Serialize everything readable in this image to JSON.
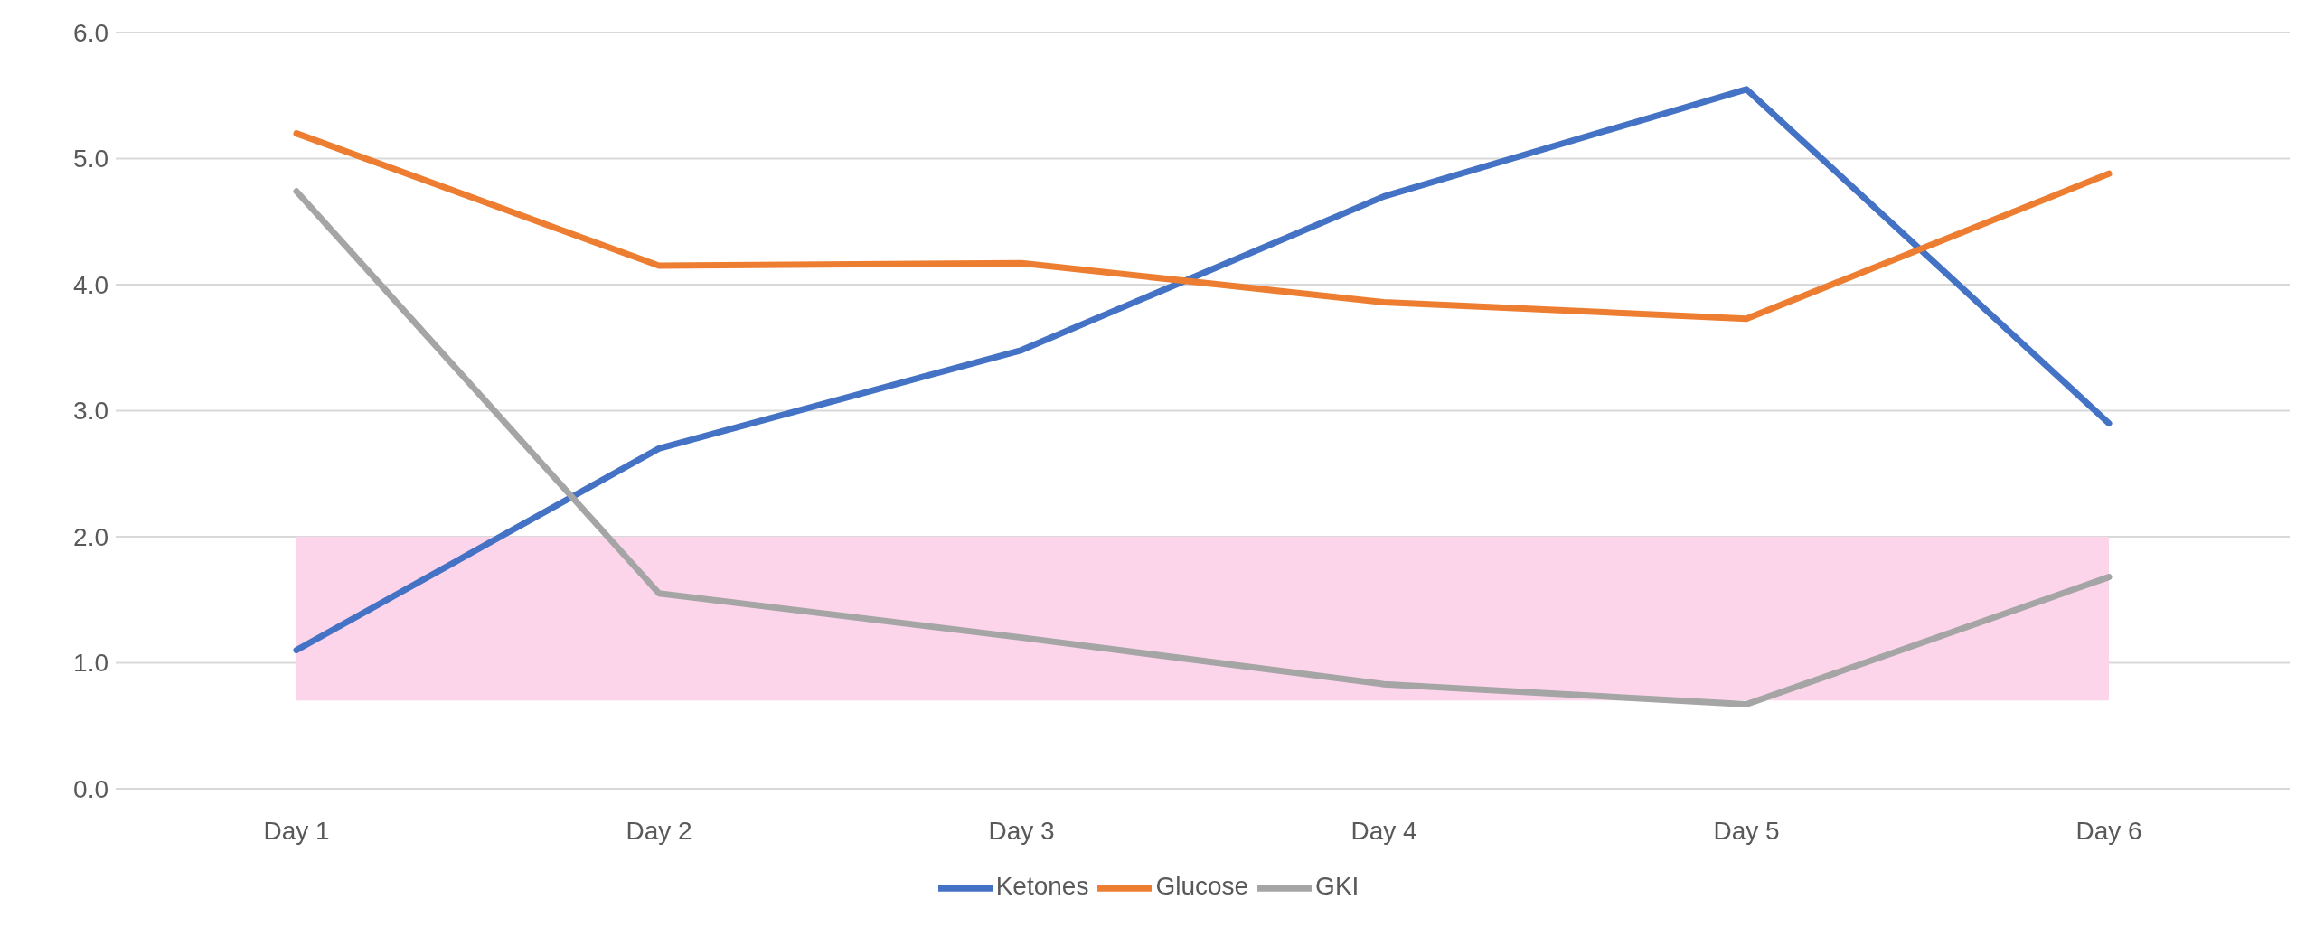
{
  "chart_data": {
    "type": "line",
    "categories": [
      "Day 1",
      "Day 2",
      "Day 3",
      "Day 4",
      "Day 5",
      "Day 6"
    ],
    "series": [
      {
        "name": "Ketones",
        "color": "#4472c4",
        "values": [
          1.1,
          2.7,
          3.48,
          4.7,
          5.55,
          2.9
        ]
      },
      {
        "name": "Glucose",
        "color": "#ed7d31",
        "values": [
          5.2,
          4.15,
          4.17,
          3.86,
          3.73,
          4.88
        ]
      },
      {
        "name": "GKI",
        "color": "#a5a5a5",
        "values": [
          4.74,
          1.55,
          1.2,
          0.83,
          0.67,
          1.68
        ]
      }
    ],
    "ylim": [
      0,
      6
    ],
    "yticks": [
      {
        "value": 0,
        "label": "0.0"
      },
      {
        "value": 1,
        "label": "1.0"
      },
      {
        "value": 2,
        "label": "2.0"
      },
      {
        "value": 3,
        "label": "3.0"
      },
      {
        "value": 4,
        "label": "4.0"
      },
      {
        "value": 5,
        "label": "5.0"
      },
      {
        "value": 6,
        "label": "6.0"
      }
    ],
    "bands": [
      {
        "axis": "y",
        "from": 0.7,
        "to": 2.0,
        "color": "#fcd5eb"
      }
    ],
    "grid": "y",
    "legend": "bottom",
    "marker": "none",
    "line_style": "solid"
  }
}
